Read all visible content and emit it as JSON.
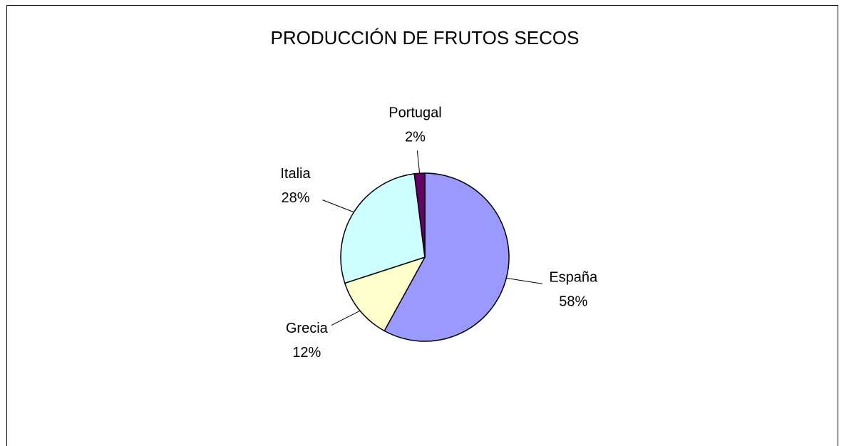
{
  "chart_data": {
    "type": "pie",
    "title": "PRODUCCIÓN DE FRUTOS SECOS",
    "categories": [
      "España",
      "Grecia",
      "Italia",
      "Portugal"
    ],
    "values": [
      58,
      12,
      28,
      2
    ],
    "value_labels": [
      "58%",
      "12%",
      "28%",
      "2%"
    ],
    "colors": [
      "#9999ff",
      "#ffffcc",
      "#ccffff",
      "#660066"
    ]
  }
}
